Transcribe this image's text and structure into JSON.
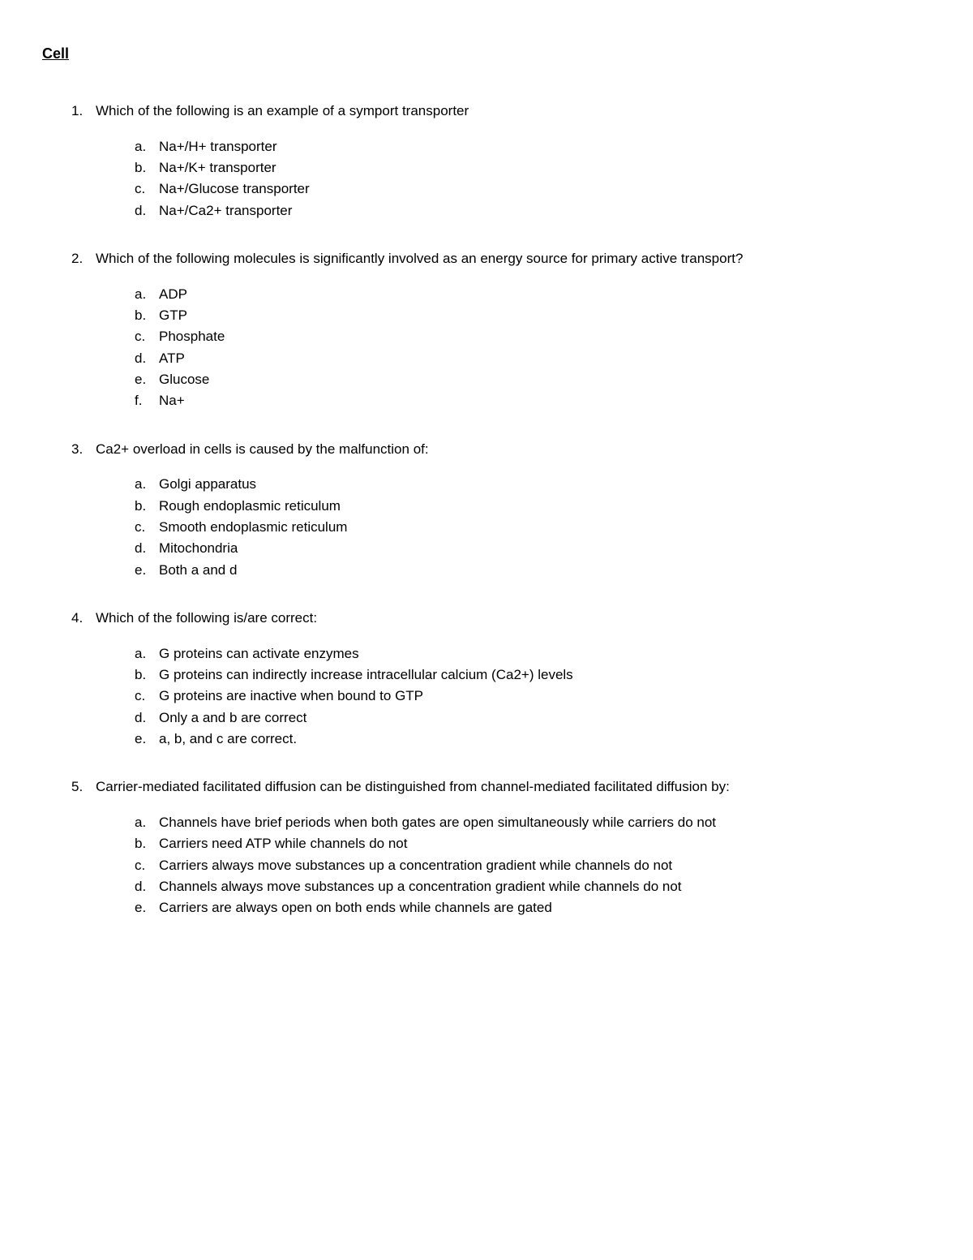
{
  "title": "Cell",
  "text_color": "#000000",
  "background_color": "#ffffff",
  "font_family": "Arial",
  "title_fontsize": 18,
  "body_fontsize": 17,
  "questions": [
    {
      "number": "1.",
      "text": "Which of the following is an example of a symport transporter",
      "options": [
        {
          "letter": "a.",
          "text": "Na+/H+ transporter"
        },
        {
          "letter": "b.",
          "text": "Na+/K+ transporter"
        },
        {
          "letter": "c.",
          "text": "Na+/Glucose transporter"
        },
        {
          "letter": "d.",
          "text": "Na+/Ca2+ transporter"
        }
      ]
    },
    {
      "number": "2.",
      "text": "Which of the following molecules is significantly involved as an energy source for primary active transport?",
      "options": [
        {
          "letter": "a.",
          "text": "ADP"
        },
        {
          "letter": "b.",
          "text": "GTP"
        },
        {
          "letter": "c.",
          "text": "Phosphate"
        },
        {
          "letter": "d.",
          "text": "ATP"
        },
        {
          "letter": "e.",
          "text": "Glucose"
        },
        {
          "letter": "f.",
          "text": "Na+"
        }
      ]
    },
    {
      "number": "3.",
      "text": "Ca2+ overload in cells is caused by the malfunction of:",
      "options": [
        {
          "letter": "a.",
          "text": "Golgi apparatus"
        },
        {
          "letter": "b.",
          "text": "Rough endoplasmic reticulum"
        },
        {
          "letter": "c.",
          "text": "Smooth endoplasmic reticulum"
        },
        {
          "letter": "d.",
          "text": "Mitochondria"
        },
        {
          "letter": "e.",
          "text": "Both a and d"
        }
      ]
    },
    {
      "number": "4.",
      "text": "Which of the following is/are correct:",
      "options": [
        {
          "letter": "a.",
          "text": "G proteins can activate enzymes"
        },
        {
          "letter": "b.",
          "text": "G proteins can indirectly increase intracellular calcium (Ca2+) levels"
        },
        {
          "letter": "c.",
          "text": "G proteins are inactive when bound to GTP"
        },
        {
          "letter": "d.",
          "text": "Only a and b are correct"
        },
        {
          "letter": "e.",
          "text": "a, b, and c are correct."
        }
      ]
    },
    {
      "number": "5.",
      "text": "Carrier-mediated facilitated diffusion can be distinguished from channel-mediated facilitated diffusion by:",
      "options": [
        {
          "letter": "a.",
          "text": "Channels have brief periods when both gates are open simultaneously while carriers do not"
        },
        {
          "letter": "b.",
          "text": "Carriers need ATP while channels do not"
        },
        {
          "letter": "c.",
          "text": "Carriers always move substances up a concentration gradient while channels do not"
        },
        {
          "letter": "d.",
          "text": "Channels always move substances up a concentration gradient while channels do not"
        },
        {
          "letter": "e.",
          "text": "Carriers are always open on both ends while channels are gated"
        }
      ]
    }
  ]
}
